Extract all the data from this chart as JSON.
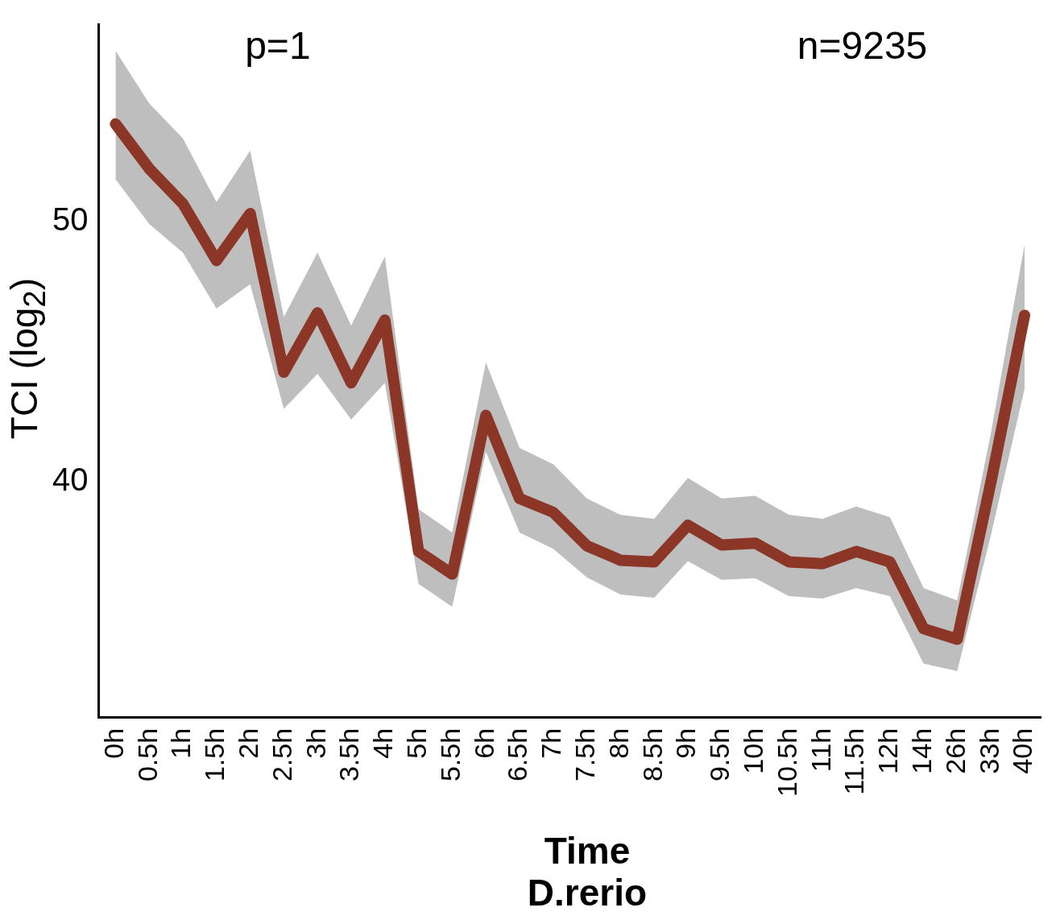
{
  "chart_data": {
    "type": "line",
    "xlabel": "Time",
    "subtitle": "D.rerio",
    "ylabel": "TCI (log$_{2}$)",
    "annotations": [
      "p=1",
      "n=9235"
    ],
    "categories": [
      "0h",
      "0.5h",
      "1h",
      "1.5h",
      "2h",
      "2.5h",
      "3h",
      "3.5h",
      "4h",
      "5h",
      "5.5h",
      "6h",
      "6.5h",
      "7h",
      "7.5h",
      "8h",
      "8.5h",
      "9h",
      "9.5h",
      "10h",
      "10.5h",
      "11h",
      "11.5h",
      "12h",
      "14h",
      "26h",
      "33h",
      "40h"
    ],
    "series": [
      {
        "color": "#8b3626",
        "values": [
          53.76,
          52.04,
          50.69,
          48.5,
          50.31,
          44.2,
          46.49,
          43.79,
          46.21,
          37.3,
          36.43,
          42.54,
          39.34,
          38.81,
          37.52,
          36.96,
          36.9,
          38.31,
          37.55,
          37.62,
          36.9,
          36.83,
          37.3,
          36.9,
          34.33,
          33.92,
          39.97,
          46.39
        ],
        "lower": [
          51.63,
          49.91,
          48.81,
          46.65,
          47.59,
          42.79,
          44.14,
          42.38,
          43.79,
          36.05,
          35.17,
          41.13,
          38.03,
          37.4,
          36.3,
          35.64,
          35.52,
          36.93,
          36.21,
          36.27,
          35.58,
          35.49,
          35.89,
          35.58,
          32.98,
          32.7,
          37.93,
          43.57
        ],
        "upper": [
          56.58,
          54.55,
          53.2,
          50.75,
          52.73,
          46.33,
          48.81,
          45.99,
          48.65,
          38.93,
          38.03,
          44.58,
          41.29,
          40.66,
          39.34,
          38.71,
          38.56,
          40.13,
          39.34,
          39.44,
          38.71,
          38.56,
          39.03,
          38.62,
          35.89,
          35.42,
          41.85,
          49.12
        ]
      }
    ],
    "ylim": [
      30.9,
      57.6
    ],
    "yticks": [
      40,
      50
    ],
    "grid": false,
    "legend": false,
    "marker": "none",
    "line_style": "solid"
  }
}
